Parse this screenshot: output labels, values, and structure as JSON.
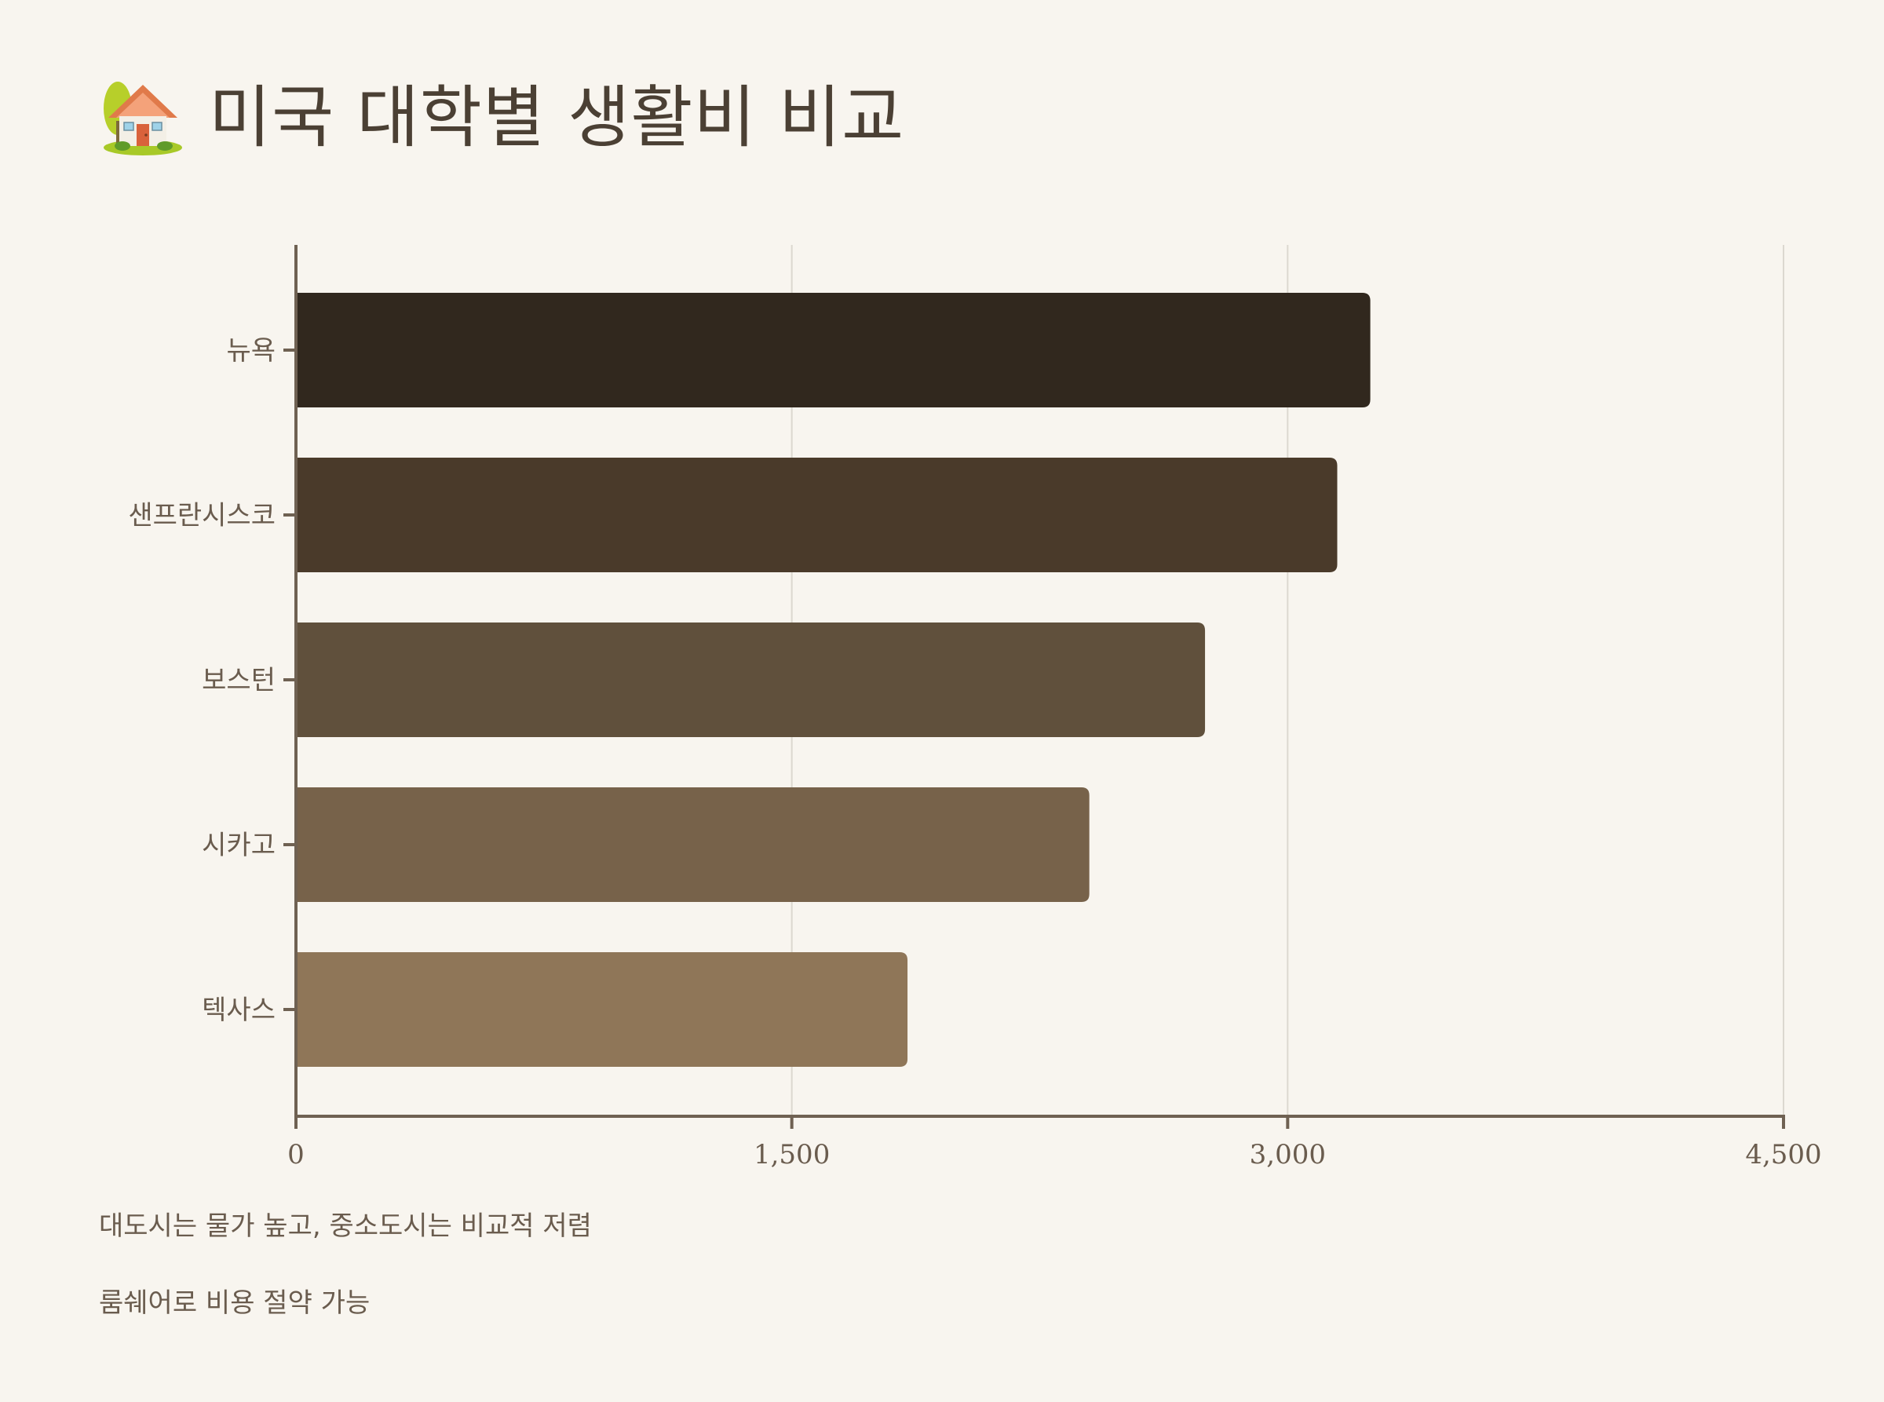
{
  "header": {
    "icon": "house-with-garden-icon",
    "title": "미국 대학별 생활비 비교"
  },
  "chart_data": {
    "type": "bar",
    "orientation": "horizontal",
    "title": "",
    "xlabel": "",
    "ylabel": "",
    "categories": [
      "뉴욕",
      "샌프란시스코",
      "보스턴",
      "시카고",
      "텍사스"
    ],
    "values": [
      3250,
      3150,
      2750,
      2400,
      1850
    ],
    "xlim": [
      0,
      4500
    ],
    "ticks": [
      0,
      1500,
      3000,
      4500
    ],
    "tick_labels": [
      "0",
      "1,500",
      "3,000",
      "4,500"
    ],
    "colors": [
      "#31281e",
      "#4a3a2a",
      "#60503c",
      "#77624a",
      "#8f7658"
    ],
    "grid": "vertical",
    "legend": "none"
  },
  "notes": [
    "대도시는 물가 높고, 중소도시는 비교적 저렴",
    "룸쉐어로 비용 절약 가능"
  ],
  "style": {
    "background": "#f8f5ef",
    "axis_color": "#6f6152",
    "grid_color": "#dcd8d0"
  }
}
